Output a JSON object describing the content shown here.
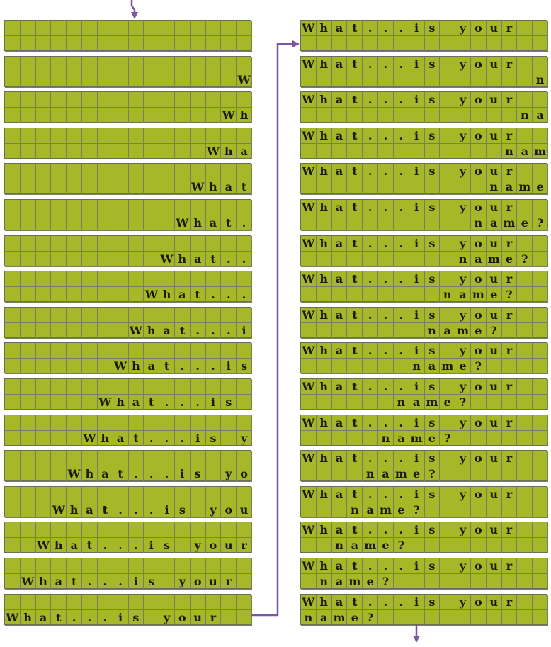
{
  "display": {
    "columns": 16,
    "rows": 2
  },
  "message": {
    "line1": "What...is your",
    "line2": "name?"
  },
  "colors": {
    "lcd_background": "#a6b828",
    "grid_line": "#7a7f60",
    "character": "#1a1a10",
    "arrow": "#7b55a0"
  },
  "frames_left": [
    {
      "row1": "                ",
      "row2": "                "
    },
    {
      "row1": "                ",
      "row2": "               W"
    },
    {
      "row1": "                ",
      "row2": "              Wh"
    },
    {
      "row1": "                ",
      "row2": "             Wha"
    },
    {
      "row1": "                ",
      "row2": "            What"
    },
    {
      "row1": "                ",
      "row2": "           What."
    },
    {
      "row1": "                ",
      "row2": "          What.."
    },
    {
      "row1": "                ",
      "row2": "         What..."
    },
    {
      "row1": "                ",
      "row2": "        What...i"
    },
    {
      "row1": "                ",
      "row2": "       What...is"
    },
    {
      "row1": "                ",
      "row2": "      What...is "
    },
    {
      "row1": "                ",
      "row2": "     What...is y"
    },
    {
      "row1": "                ",
      "row2": "    What...is yo"
    },
    {
      "row1": "                ",
      "row2": "   What...is you"
    },
    {
      "row1": "                ",
      "row2": "  What...is your"
    },
    {
      "row1": "                ",
      "row2": " What...is your "
    },
    {
      "row1": "                ",
      "row2": "What...is your  "
    }
  ],
  "frames_right": [
    {
      "row1": "What...is your  ",
      "row2": "                "
    },
    {
      "row1": "What...is your  ",
      "row2": "               n"
    },
    {
      "row1": "What...is your  ",
      "row2": "              na"
    },
    {
      "row1": "What...is your  ",
      "row2": "             nam"
    },
    {
      "row1": "What...is your  ",
      "row2": "            name"
    },
    {
      "row1": "What...is your  ",
      "row2": "           name?"
    },
    {
      "row1": "What...is your  ",
      "row2": "          name? "
    },
    {
      "row1": "What...is your  ",
      "row2": "         name?  "
    },
    {
      "row1": "What...is your  ",
      "row2": "        name?   "
    },
    {
      "row1": "What...is your  ",
      "row2": "       name?    "
    },
    {
      "row1": "What...is your  ",
      "row2": "      name?     "
    },
    {
      "row1": "What...is your  ",
      "row2": "     name?      "
    },
    {
      "row1": "What...is your  ",
      "row2": "    name?       "
    },
    {
      "row1": "What...is your  ",
      "row2": "   name?        "
    },
    {
      "row1": "What...is your  ",
      "row2": "  name?         "
    },
    {
      "row1": "What...is your  ",
      "row2": " name?          "
    },
    {
      "row1": "What...is your  ",
      "row2": "name?           "
    }
  ]
}
